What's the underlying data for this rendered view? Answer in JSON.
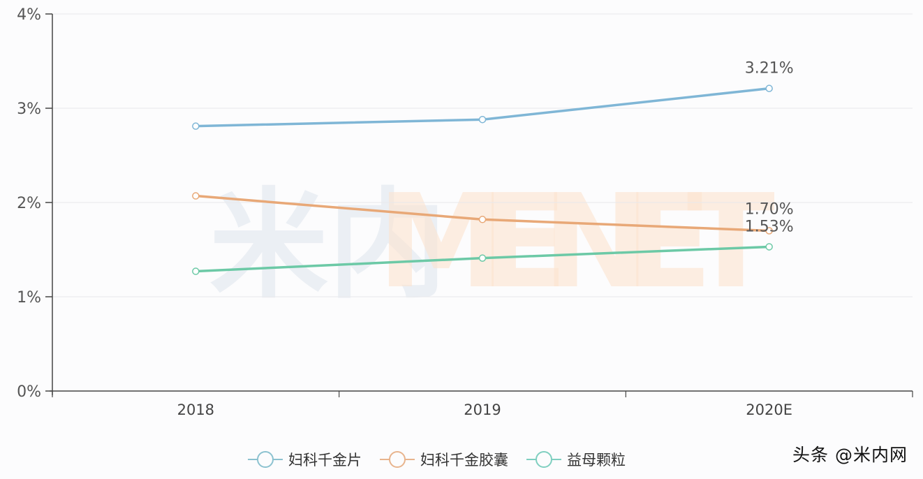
{
  "chart_data": {
    "type": "line",
    "title": "",
    "xlabel": "",
    "ylabel": "",
    "categories": [
      "2018",
      "2019",
      "2020E"
    ],
    "y_ticks": [
      "0%",
      "1%",
      "2%",
      "3%",
      "4%"
    ],
    "ylim": [
      0,
      4
    ],
    "grid": true,
    "legend_position": "bottom",
    "series": [
      {
        "name": "妇科千金片",
        "color": "#7fb6d6",
        "values": [
          2.81,
          2.88,
          3.21
        ],
        "end_label": "3.21%"
      },
      {
        "name": "妇科千金胶囊",
        "color": "#e8a877",
        "values": [
          2.07,
          1.82,
          1.7
        ],
        "end_label": "1.70%"
      },
      {
        "name": "益母颗粒",
        "color": "#6cc9a6",
        "values": [
          1.27,
          1.41,
          1.53
        ],
        "end_label": "1.53%"
      }
    ],
    "watermark": {
      "cn": "米内",
      "en": "MENET"
    }
  },
  "legend": {
    "items": [
      {
        "label": "妇科千金片",
        "color": "#8cc2d0"
      },
      {
        "label": "妇科千金胶囊",
        "color": "#e8b48d"
      },
      {
        "label": "益母颗粒",
        "color": "#7fcfc0"
      }
    ]
  },
  "credit": "头条 @米内网"
}
